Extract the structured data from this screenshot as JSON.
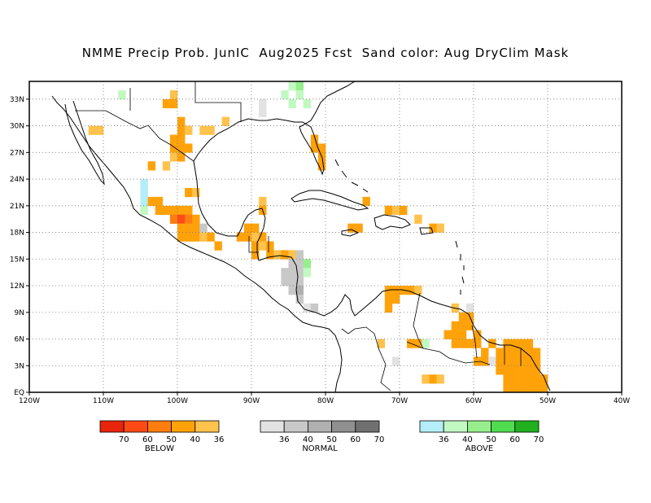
{
  "title": "NMME Precip Prob. JunIC  Aug2025 Fcst  Sand color: Aug DryClim Mask",
  "map": {
    "lon_range": [
      -120,
      -40
    ],
    "lat_range": [
      0,
      35
    ],
    "x_ticks": [
      {
        "lon": -120,
        "label": "120W"
      },
      {
        "lon": -110,
        "label": "110W"
      },
      {
        "lon": -100,
        "label": "100W"
      },
      {
        "lon": -90,
        "label": "90W"
      },
      {
        "lon": -80,
        "label": "80W"
      },
      {
        "lon": -70,
        "label": "70W"
      },
      {
        "lon": -60,
        "label": "60W"
      },
      {
        "lon": -50,
        "label": "50W"
      },
      {
        "lon": -40,
        "label": "40W"
      }
    ],
    "y_ticks": [
      {
        "lat": 0,
        "label": "EQ"
      },
      {
        "lat": 3,
        "label": "3N"
      },
      {
        "lat": 6,
        "label": "6N"
      },
      {
        "lat": 9,
        "label": "9N"
      },
      {
        "lat": 12,
        "label": "12N"
      },
      {
        "lat": 15,
        "label": "15N"
      },
      {
        "lat": 18,
        "label": "18N"
      },
      {
        "lat": 21,
        "label": "21N"
      },
      {
        "lat": 24,
        "label": "24N"
      },
      {
        "lat": 27,
        "label": "27N"
      },
      {
        "lat": 30,
        "label": "30N"
      },
      {
        "lat": 33,
        "label": "33N"
      }
    ],
    "grid": "dotted",
    "cell_deg": 1
  },
  "legend": {
    "below": {
      "caption": "BELOW",
      "colors": [
        "#e8240c",
        "#ff4a16",
        "#ff7c10",
        "#ffa20a",
        "#ffc24c"
      ],
      "labels": [
        "70",
        "60",
        "50",
        "40",
        "36"
      ]
    },
    "normal": {
      "caption": "NORMAL",
      "colors": [
        "#e2e2e2",
        "#c8c8c8",
        "#b0b0b0",
        "#909090",
        "#707070"
      ],
      "labels": [
        "36",
        "40",
        "50",
        "60",
        "70"
      ]
    },
    "above": {
      "caption": "ABOVE",
      "colors": [
        "#b4eef8",
        "#c2f8c2",
        "#96ee8c",
        "#50dc50",
        "#20b020"
      ],
      "labels": [
        "36",
        "40",
        "50",
        "60",
        "70"
      ]
    }
  },
  "chart_data": {
    "type": "heatmap",
    "description_units": "grid cells: [lon_west, lat_south, category_level]",
    "categories": [
      "B36",
      "B40",
      "B50",
      "B60",
      "B70",
      "N36",
      "N40",
      "N50",
      "N60",
      "N70",
      "A36",
      "A40",
      "A50",
      "A60",
      "A70"
    ],
    "cells": [
      [
        -101,
        33,
        "B36"
      ],
      [
        -101,
        32,
        "B40"
      ],
      [
        -102,
        32,
        "B40"
      ],
      [
        -108,
        33,
        "A40"
      ],
      [
        -85,
        34,
        "A40"
      ],
      [
        -84,
        34,
        "A50"
      ],
      [
        -86,
        33,
        "A40"
      ],
      [
        -84,
        33,
        "A40"
      ],
      [
        -85,
        32,
        "A40"
      ],
      [
        -83,
        32,
        "A40"
      ],
      [
        -89,
        32,
        "N36"
      ],
      [
        -89,
        31,
        "N36"
      ],
      [
        -100,
        30,
        "B40"
      ],
      [
        -100,
        29,
        "B40"
      ],
      [
        -99,
        29,
        "B36"
      ],
      [
        -97,
        29,
        "B36"
      ],
      [
        -96,
        29,
        "B36"
      ],
      [
        -94,
        30,
        "B36"
      ],
      [
        -111,
        29,
        "B36"
      ],
      [
        -112,
        29,
        "B36"
      ],
      [
        -101,
        28,
        "B40"
      ],
      [
        -100,
        28,
        "B40"
      ],
      [
        -101,
        27,
        "B40"
      ],
      [
        -100,
        27,
        "B40"
      ],
      [
        -99,
        27,
        "B40"
      ],
      [
        -101,
        26,
        "B36"
      ],
      [
        -100,
        26,
        "B40"
      ],
      [
        -104,
        25,
        "B40"
      ],
      [
        -102,
        25,
        "B36"
      ],
      [
        -82,
        28,
        "B40"
      ],
      [
        -82,
        27,
        "B40"
      ],
      [
        -81,
        27,
        "B40"
      ],
      [
        -81,
        26,
        "B40"
      ],
      [
        -81,
        25,
        "B40"
      ],
      [
        -105,
        23,
        "A36"
      ],
      [
        -105,
        22,
        "A36"
      ],
      [
        -105,
        21,
        "A36"
      ],
      [
        -105,
        20,
        "A40"
      ],
      [
        -99,
        22,
        "B40"
      ],
      [
        -98,
        22,
        "B36"
      ],
      [
        -104,
        21,
        "B40"
      ],
      [
        -103,
        21,
        "B40"
      ],
      [
        -103,
        20,
        "B40"
      ],
      [
        -102,
        20,
        "B40"
      ],
      [
        -101,
        20,
        "B40"
      ],
      [
        -100,
        20,
        "B40"
      ],
      [
        -99,
        20,
        "B40"
      ],
      [
        -101,
        19,
        "B50"
      ],
      [
        -100,
        19,
        "B60"
      ],
      [
        -99,
        19,
        "B50"
      ],
      [
        -98,
        19,
        "B40"
      ],
      [
        -100,
        18,
        "B40"
      ],
      [
        -99,
        18,
        "B40"
      ],
      [
        -98,
        18,
        "B40"
      ],
      [
        -97,
        18,
        "N40"
      ],
      [
        -100,
        17,
        "B40"
      ],
      [
        -99,
        17,
        "B40"
      ],
      [
        -98,
        17,
        "B40"
      ],
      [
        -97,
        17,
        "B36"
      ],
      [
        -96,
        17,
        "B40"
      ],
      [
        -95,
        16,
        "B40"
      ],
      [
        -91,
        18,
        "B40"
      ],
      [
        -90,
        18,
        "B40"
      ],
      [
        -92,
        17,
        "B40"
      ],
      [
        -91,
        17,
        "B40"
      ],
      [
        -90,
        17,
        "B36"
      ],
      [
        -89,
        17,
        "B40"
      ],
      [
        -90,
        16,
        "B40"
      ],
      [
        -89,
        16,
        "B36"
      ],
      [
        -90,
        15,
        "B40"
      ],
      [
        -89,
        21,
        "B36"
      ],
      [
        -89,
        20,
        "B40"
      ],
      [
        -88,
        16,
        "B40"
      ],
      [
        -88,
        15,
        "B40"
      ],
      [
        -87,
        15,
        "B36"
      ],
      [
        -86,
        15,
        "B40"
      ],
      [
        -85,
        15,
        "B36"
      ],
      [
        -85,
        14,
        "N40"
      ],
      [
        -84,
        14,
        "N40"
      ],
      [
        -83,
        14,
        "A50"
      ],
      [
        -84,
        15,
        "N40"
      ],
      [
        -86,
        13,
        "N40"
      ],
      [
        -85,
        13,
        "N40"
      ],
      [
        -84,
        13,
        "N40"
      ],
      [
        -83,
        13,
        "A40"
      ],
      [
        -86,
        12,
        "N40"
      ],
      [
        -85,
        12,
        "N40"
      ],
      [
        -84,
        12,
        "N40"
      ],
      [
        -85,
        11,
        "N40"
      ],
      [
        -84,
        11,
        "N50"
      ],
      [
        -84,
        10,
        "N40"
      ],
      [
        -83,
        9,
        "N36"
      ],
      [
        -82,
        9,
        "N40"
      ],
      [
        -75,
        21,
        "B40"
      ],
      [
        -72,
        20,
        "B40"
      ],
      [
        -71,
        20,
        "B36"
      ],
      [
        -70,
        20,
        "B40"
      ],
      [
        -68,
        19,
        "B36"
      ],
      [
        -77,
        18,
        "B40"
      ],
      [
        -76,
        18,
        "B40"
      ],
      [
        -66,
        18,
        "B40"
      ],
      [
        -65,
        18,
        "B36"
      ],
      [
        -72,
        11,
        "B40"
      ],
      [
        -71,
        11,
        "B40"
      ],
      [
        -70,
        11,
        "B40"
      ],
      [
        -69,
        11,
        "B40"
      ],
      [
        -68,
        11,
        "B36"
      ],
      [
        -72,
        10,
        "B40"
      ],
      [
        -71,
        10,
        "B40"
      ],
      [
        -72,
        9,
        "B40"
      ],
      [
        -63,
        9,
        "B36"
      ],
      [
        -61,
        9,
        "N36"
      ],
      [
        -62,
        8,
        "B40"
      ],
      [
        -61,
        8,
        "B40"
      ],
      [
        -63,
        7,
        "B40"
      ],
      [
        -62,
        7,
        "B40"
      ],
      [
        -61,
        7,
        "B40"
      ],
      [
        -64,
        6,
        "B40"
      ],
      [
        -63,
        6,
        "B40"
      ],
      [
        -62,
        6,
        "B40"
      ],
      [
        -60,
        6,
        "B40"
      ],
      [
        -63,
        5,
        "B40"
      ],
      [
        -62,
        5,
        "B40"
      ],
      [
        -61,
        5,
        "B40"
      ],
      [
        -60,
        5,
        "B40"
      ],
      [
        -58,
        5,
        "B40"
      ],
      [
        -56,
        5,
        "B40"
      ],
      [
        -55,
        5,
        "B40"
      ],
      [
        -54,
        5,
        "B40"
      ],
      [
        -53,
        5,
        "B40"
      ],
      [
        -59,
        4,
        "B40"
      ],
      [
        -57,
        4,
        "B40"
      ],
      [
        -56,
        4,
        "B40"
      ],
      [
        -55,
        4,
        "B40"
      ],
      [
        -54,
        4,
        "B40"
      ],
      [
        -53,
        4,
        "B40"
      ],
      [
        -52,
        4,
        "B40"
      ],
      [
        -60,
        3,
        "B40"
      ],
      [
        -59,
        3,
        "B40"
      ],
      [
        -58,
        3,
        "N36"
      ],
      [
        -57,
        3,
        "B40"
      ],
      [
        -56,
        3,
        "B40"
      ],
      [
        -55,
        3,
        "B40"
      ],
      [
        -54,
        3,
        "B40"
      ],
      [
        -53,
        3,
        "B40"
      ],
      [
        -52,
        3,
        "B40"
      ],
      [
        -57,
        2,
        "B40"
      ],
      [
        -56,
        2,
        "B40"
      ],
      [
        -55,
        2,
        "B40"
      ],
      [
        -54,
        2,
        "B40"
      ],
      [
        -53,
        2,
        "B40"
      ],
      [
        -52,
        2,
        "B40"
      ],
      [
        -56,
        1,
        "B40"
      ],
      [
        -55,
        1,
        "B40"
      ],
      [
        -54,
        1,
        "B40"
      ],
      [
        -53,
        1,
        "B40"
      ],
      [
        -52,
        1,
        "B40"
      ],
      [
        -51,
        1,
        "B40"
      ],
      [
        -56,
        0,
        "B40"
      ],
      [
        -55,
        0,
        "B40"
      ],
      [
        -54,
        0,
        "B40"
      ],
      [
        -53,
        0,
        "B40"
      ],
      [
        -52,
        0,
        "B40"
      ],
      [
        -51,
        0,
        "B40"
      ],
      [
        -67,
        1,
        "B36"
      ],
      [
        -66,
        1,
        "B40"
      ],
      [
        -65,
        1,
        "B36"
      ],
      [
        -69,
        5,
        "B40"
      ],
      [
        -68,
        5,
        "B40"
      ],
      [
        -67,
        5,
        "A40"
      ],
      [
        -73,
        5,
        "B36"
      ],
      [
        -71,
        3,
        "N36"
      ]
    ]
  }
}
